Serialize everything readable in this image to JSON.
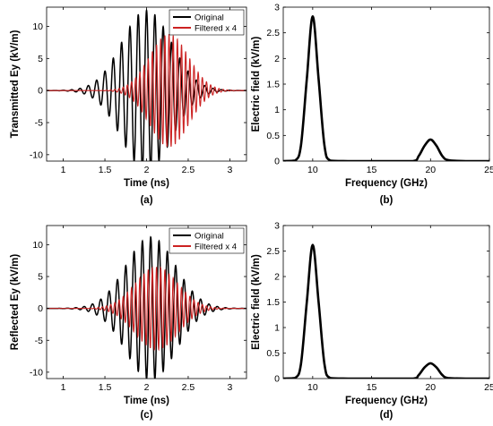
{
  "chart_data": [
    {
      "id": "a",
      "type": "line",
      "panel_label": "(a)",
      "xlabel": "Time (ns)",
      "ylabel": "Transmitted Ey (kV/m)",
      "xlim": [
        0.8,
        3.2
      ],
      "ylim": [
        -11,
        13
      ],
      "xticks": [
        1,
        1.5,
        2,
        2.5,
        3
      ],
      "xtick_labels": [
        "1",
        "1.5",
        "2",
        "2.5",
        "3"
      ],
      "yticks": [
        -10,
        -5,
        0,
        5,
        10
      ],
      "ytick_labels": [
        "-10",
        "-5",
        "0",
        "5",
        "10"
      ],
      "legend_position": "top-right",
      "grid": false,
      "series": [
        {
          "name": "Original",
          "color": "#000000",
          "signal": {
            "kind": "gaussian-burst",
            "amplitude": 12.5,
            "center": 2.0,
            "sigma": 0.42,
            "frequency": 10
          },
          "envelope_points": {
            "x": [
              1.0,
              1.5,
              1.8,
              2.0,
              2.2,
              2.5,
              3.0
            ],
            "y": [
              0.8,
              6.3,
              11.0,
              12.5,
              11.0,
              6.3,
              0.8
            ]
          }
        },
        {
          "name": "Filtered x 4",
          "color": "#cc2222",
          "signal": {
            "kind": "gaussian-burst",
            "amplitude": 8.8,
            "center": 2.27,
            "sigma": 0.33,
            "frequency": 20
          },
          "envelope_points": {
            "x": [
              1.6,
              1.9,
              2.1,
              2.27,
              2.45,
              2.65,
              3.0
            ],
            "y": [
              1.1,
              4.5,
              7.4,
              8.8,
              7.3,
              4.4,
              0.8
            ]
          }
        }
      ]
    },
    {
      "id": "b",
      "type": "line",
      "panel_label": "(b)",
      "xlabel": "Frequency (GHz)",
      "ylabel": "Electric field (kV/m)",
      "xlim": [
        7.5,
        25
      ],
      "ylim": [
        0,
        3
      ],
      "xticks": [
        10,
        15,
        20,
        25
      ],
      "xtick_labels": [
        "10",
        "15",
        "20",
        "25"
      ],
      "yticks": [
        0,
        0.5,
        1,
        1.5,
        2,
        2.5,
        3
      ],
      "ytick_labels": [
        "0",
        "0.5",
        "1",
        "1.5",
        "2",
        "2.5",
        "3"
      ],
      "grid": false,
      "series": [
        {
          "color": "#000000",
          "x": [
            7.5,
            8.5,
            9.0,
            9.5,
            10.0,
            10.5,
            11.0,
            11.5,
            13,
            16,
            18.5,
            19.0,
            19.5,
            20.0,
            20.5,
            21.0,
            21.5,
            23,
            25
          ],
          "y": [
            0,
            0.01,
            0.3,
            1.6,
            2.82,
            1.6,
            0.3,
            0.01,
            0,
            0,
            0,
            0.1,
            0.3,
            0.42,
            0.3,
            0.1,
            0.02,
            0,
            0
          ]
        }
      ]
    },
    {
      "id": "c",
      "type": "line",
      "panel_label": "(c)",
      "xlabel": "Time (ns)",
      "ylabel": "Reflected Ey (kV/m)",
      "xlim": [
        0.8,
        3.2
      ],
      "ylim": [
        -11,
        13
      ],
      "xticks": [
        1,
        1.5,
        2,
        2.5,
        3
      ],
      "xtick_labels": [
        "1",
        "1.5",
        "2",
        "2.5",
        "3"
      ],
      "yticks": [
        -10,
        -5,
        0,
        5,
        10
      ],
      "ytick_labels": [
        "-10",
        "-5",
        "0",
        "5",
        "10"
      ],
      "legend_position": "top-right",
      "grid": false,
      "series": [
        {
          "name": "Original",
          "color": "#000000",
          "signal": {
            "kind": "gaussian-burst",
            "amplitude": 11.2,
            "center": 2.05,
            "sigma": 0.42,
            "frequency": 10
          },
          "envelope_points": {
            "x": [
              1.0,
              1.5,
              1.8,
              2.05,
              2.3,
              2.6,
              3.0
            ],
            "y": [
              0.4,
              4.1,
              9.2,
              11.2,
              9.2,
              4.1,
              0.9
            ]
          }
        },
        {
          "name": "Filtered x 4",
          "color": "#cc2222",
          "signal": {
            "kind": "gaussian-burst",
            "amplitude": 6.5,
            "center": 2.12,
            "sigma": 0.36,
            "frequency": 20
          },
          "envelope_points": {
            "x": [
              1.4,
              1.7,
              1.95,
              2.12,
              2.3,
              2.55,
              2.9
            ],
            "y": [
              0.9,
              3.4,
              5.9,
              6.5,
              5.9,
              3.3,
              0.6
            ]
          }
        }
      ]
    },
    {
      "id": "d",
      "type": "line",
      "panel_label": "(d)",
      "xlabel": "Frequency (GHz)",
      "ylabel": "Electric field (kV/m)",
      "xlim": [
        7.5,
        25
      ],
      "ylim": [
        0,
        3
      ],
      "xticks": [
        10,
        15,
        20,
        25
      ],
      "xtick_labels": [
        "10",
        "15",
        "20",
        "25"
      ],
      "yticks": [
        0,
        0.5,
        1,
        1.5,
        2,
        2.5,
        3
      ],
      "ytick_labels": [
        "0",
        "0.5",
        "1",
        "1.5",
        "2",
        "2.5",
        "3"
      ],
      "grid": false,
      "series": [
        {
          "color": "#000000",
          "x": [
            7.5,
            8.5,
            9.0,
            9.5,
            10.0,
            10.5,
            11.0,
            11.5,
            13,
            16,
            18.5,
            19.0,
            19.5,
            20.0,
            20.5,
            21.0,
            21.5,
            23,
            25
          ],
          "y": [
            0,
            0.01,
            0.28,
            1.5,
            2.62,
            1.5,
            0.28,
            0.01,
            0,
            0,
            0,
            0.07,
            0.22,
            0.3,
            0.22,
            0.07,
            0.01,
            0,
            0
          ]
        }
      ]
    }
  ]
}
